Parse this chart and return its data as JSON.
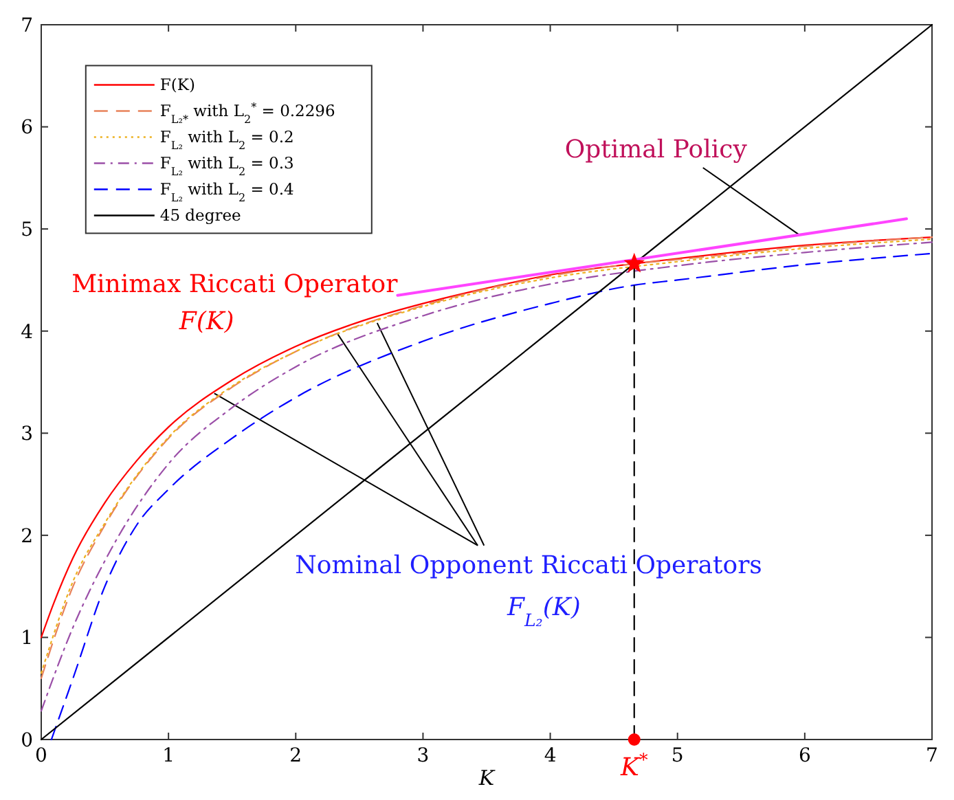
{
  "chart_data": {
    "type": "line",
    "xlabel": "K",
    "xlim": [
      0,
      7
    ],
    "ylim": [
      0,
      7
    ],
    "xticks": [
      0,
      1,
      2,
      3,
      4,
      5,
      6,
      7
    ],
    "yticks": [
      0,
      1,
      2,
      3,
      4,
      5,
      6,
      7
    ],
    "grid": false,
    "legend": "top left",
    "series": [
      {
        "name": "F(K)",
        "color": "#ff0000",
        "line_style": "solid",
        "x": [
          0,
          0.1,
          0.25,
          0.5,
          0.75,
          1,
          1.5,
          2,
          2.5,
          3,
          3.5,
          4,
          4.66,
          5,
          6,
          7
        ],
        "values": [
          1,
          1.34,
          1.78,
          2.32,
          2.73,
          3.06,
          3.52,
          3.85,
          4.09,
          4.27,
          4.42,
          4.55,
          4.66,
          4.71,
          4.84,
          4.92
        ]
      },
      {
        "name": "F$_{L₂*}$ with L$_{2}$$^{*}$ = 0.2296",
        "color": "#e8825a",
        "line_style": "dashed",
        "x": [
          0,
          0.25,
          0.5,
          1,
          1.5,
          2,
          3,
          4,
          4.66,
          5,
          6,
          7
        ],
        "values": [
          0.6,
          1.5,
          2.1,
          2.95,
          3.45,
          3.8,
          4.25,
          4.54,
          4.66,
          4.7,
          4.83,
          4.92
        ]
      },
      {
        "name": "F$_{L₂}$ with L$_{2}$ = 0.2",
        "color": "#edb120",
        "line_style": "dotted",
        "x": [
          0,
          0.25,
          0.5,
          1,
          1.5,
          2,
          3,
          4,
          5,
          6,
          7
        ],
        "values": [
          0.65,
          1.55,
          2.12,
          2.96,
          3.46,
          3.8,
          4.24,
          4.52,
          4.68,
          4.81,
          4.9
        ]
      },
      {
        "name": "F$_{L₂}$ with L$_{2}$ = 0.3",
        "color": "#9b4fa8",
        "line_style": "dashdot",
        "x": [
          0,
          0.25,
          0.5,
          1,
          1.5,
          2,
          3,
          4,
          5,
          6,
          7
        ],
        "values": [
          0.28,
          1.1,
          1.75,
          2.7,
          3.25,
          3.65,
          4.15,
          4.46,
          4.64,
          4.77,
          4.87
        ]
      },
      {
        "name": "F$_{L₂}$ with L$_{2}$ = 0.4",
        "color": "#0000ff",
        "line_style": "dashed",
        "x": [
          0.08,
          0.25,
          0.5,
          0.75,
          1,
          1.5,
          2,
          3,
          4,
          4.66,
          5,
          6,
          7
        ],
        "values": [
          0,
          0.6,
          1.5,
          2.1,
          2.45,
          2.95,
          3.35,
          3.9,
          4.27,
          4.45,
          4.5,
          4.65,
          4.76
        ]
      },
      {
        "name": "45 degree",
        "color": "#000000",
        "line_style": "solid",
        "x": [
          0,
          7
        ],
        "values": [
          0,
          7
        ]
      },
      {
        "color": "#ff44ff",
        "line_style": "solid",
        "x": [
          2.8,
          6.8
        ],
        "values": [
          4.35,
          5.1
        ]
      },
      {
        "color": "#000000",
        "line_style": "dashed",
        "x": [
          4.66,
          4.66
        ],
        "values": [
          0,
          4.66
        ]
      },
      {
        "type": "scatter",
        "color": "#ff0000",
        "marker": "star",
        "x": [
          4.66
        ],
        "values": [
          4.66
        ]
      },
      {
        "type": "scatter",
        "color": "#ff0000",
        "marker": "circle",
        "x": [
          4.66
        ],
        "values": [
          0
        ]
      }
    ],
    "annotations": [
      {
        "text": "Optimal Policy",
        "x": 5.96,
        "y": 4.94
      },
      "Minimax Riccati Operator",
      "F(K)",
      {
        "text": "Nominal Opponent Riccati Operators",
        "x": 2.33,
        "y": 3.97
      },
      "F$_{L₂}$(K)",
      "K$^{*}$"
    ]
  }
}
